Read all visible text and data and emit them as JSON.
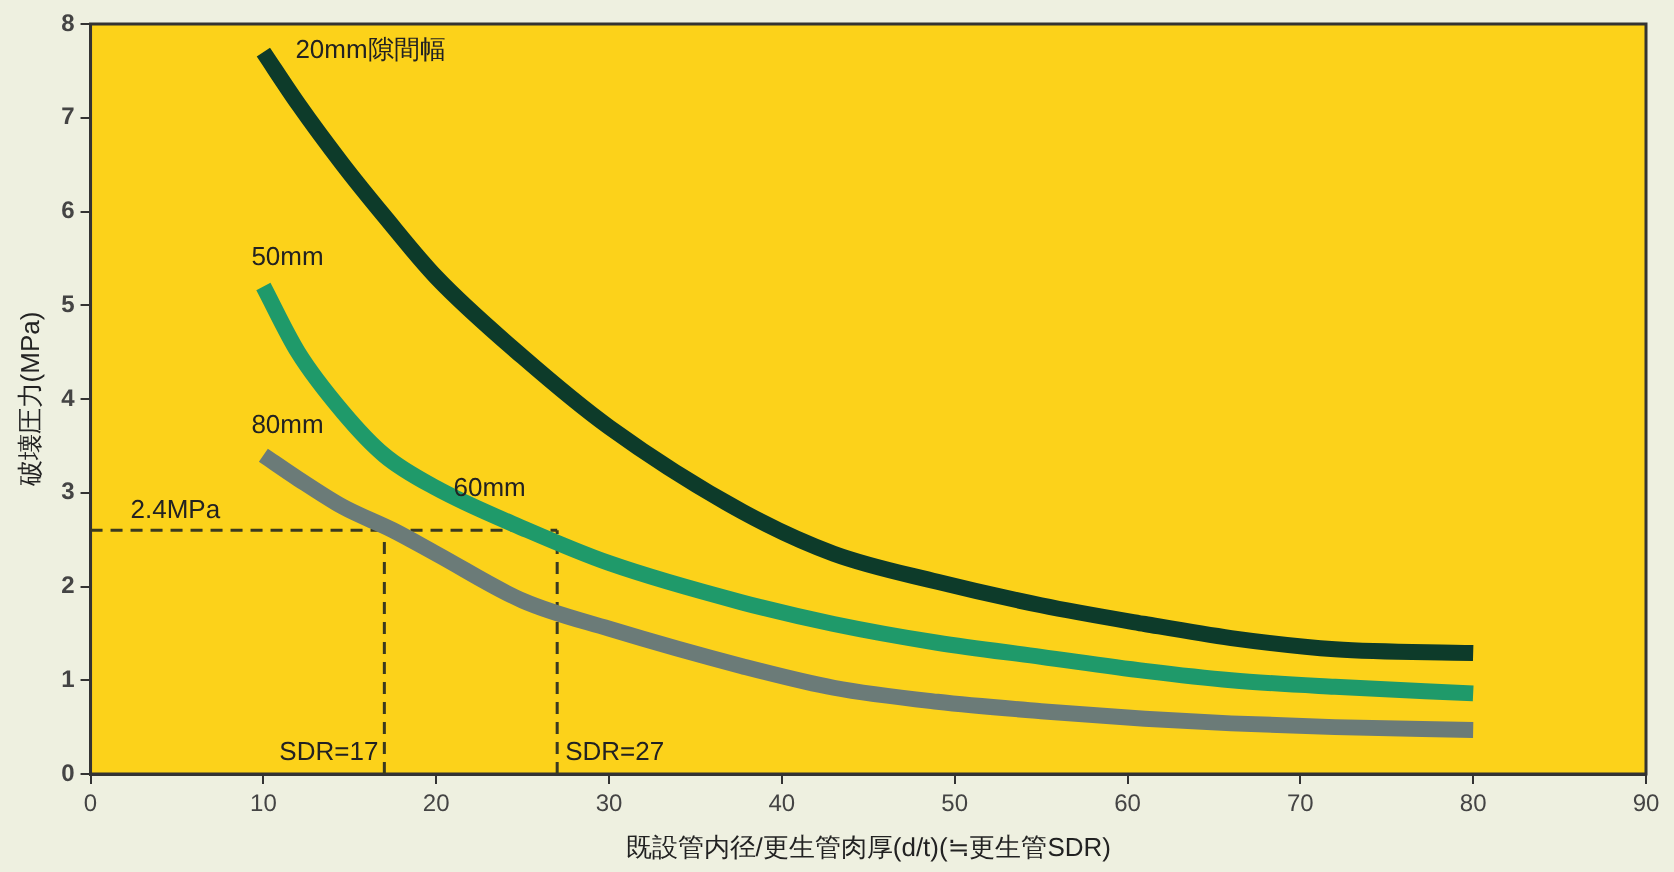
{
  "chart_data": {
    "type": "line",
    "xlabel": "既設管内径/更生管肉厚(d/t)(≒更生管SDR)",
    "ylabel": "破壊圧力(MPa)",
    "xlim": [
      0,
      90
    ],
    "xticks": [
      0,
      10,
      20,
      30,
      40,
      50,
      60,
      70,
      80,
      90
    ],
    "ylim": [
      0,
      8
    ],
    "yticks": [
      0,
      1,
      2,
      3,
      4,
      5,
      6,
      7,
      8
    ],
    "grid": false,
    "legend": false,
    "marker": "none",
    "line_style": "solid",
    "series": [
      {
        "name": "20mm隙間幅",
        "color": "#0d3b2a",
        "x": [
          10,
          12,
          14.6,
          17,
          20,
          25,
          30,
          37.7,
          43,
          49,
          55,
          61,
          66,
          72,
          80
        ],
        "values": [
          7.7,
          7.15,
          6.5,
          5.95,
          5.3,
          4.45,
          3.7,
          2.8,
          2.35,
          2.05,
          1.8,
          1.6,
          1.45,
          1.33,
          1.29
        ]
      },
      {
        "name": "50mm",
        "color": "#1f9a6a",
        "x": [
          10,
          12,
          14.6,
          17,
          20,
          25.3,
          30,
          37.7,
          43,
          49,
          55,
          61,
          66,
          72,
          80
        ],
        "values": [
          5.2,
          4.5,
          3.86,
          3.4,
          3.05,
          2.6,
          2.25,
          1.83,
          1.6,
          1.4,
          1.25,
          1.1,
          1.0,
          0.93,
          0.86
        ]
      },
      {
        "name": "80mm",
        "color": "#6b7b78",
        "x": [
          10,
          12,
          14.6,
          17.5,
          20,
          25,
          30,
          37.7,
          43,
          49,
          55,
          61,
          66,
          72,
          80
        ],
        "values": [
          3.4,
          3.15,
          2.85,
          2.6,
          2.35,
          1.85,
          1.55,
          1.15,
          0.92,
          0.77,
          0.67,
          0.59,
          0.54,
          0.5,
          0.47
        ]
      }
    ],
    "ref_lines": [
      {
        "axis": "y",
        "value": 2.6,
        "label": "2.4MPa",
        "color": "#3a3a20",
        "line_style": "dashed"
      },
      {
        "axis": "x",
        "value": 17,
        "label": "SDR=17",
        "color": "#3a3a20",
        "line_style": "dashed"
      },
      {
        "axis": "x",
        "value": 27,
        "label": "SDR=27",
        "color": "#3a3a20",
        "line_style": "dashed"
      }
    ],
    "annotations": [
      {
        "text": "60mm",
        "x": 21,
        "y": 2.9
      }
    ]
  }
}
